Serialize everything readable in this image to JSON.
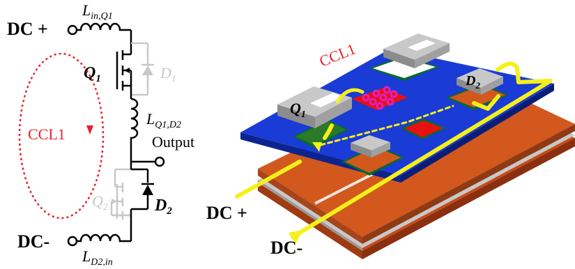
{
  "schematic": {
    "dc_plus": "DC +",
    "dc_minus": "DC-",
    "inductor_in_q1": {
      "main": "L",
      "sub": "in,Q1"
    },
    "q1": {
      "main": "Q",
      "sub": "1"
    },
    "d1": {
      "main": "D",
      "sub": "1"
    },
    "inductor_q1_d2": {
      "main": "L",
      "sub": "Q1,D2"
    },
    "output": "Output",
    "q2": {
      "main": "Q",
      "sub": "2"
    },
    "d2": {
      "main": "D",
      "sub": "2"
    },
    "inductor_d2_in": {
      "main": "L",
      "sub": "D2,in"
    },
    "loop_label": "CCL1"
  },
  "layout_3d": {
    "loop_label": "CCL1",
    "q1": {
      "main": "Q",
      "sub": "1"
    },
    "d2": {
      "main": "D",
      "sub": "2"
    },
    "dc_plus": "DC +",
    "dc_minus": "DC-"
  },
  "colors": {
    "loop": "#e8202a",
    "current_path": "#f5f01a",
    "board_blue": "#1a3bd6",
    "copper": "#d2581e",
    "device_gray": "#b9b9b9",
    "ghost": "#c8c8c8",
    "via_magenta": "#e020c0"
  }
}
